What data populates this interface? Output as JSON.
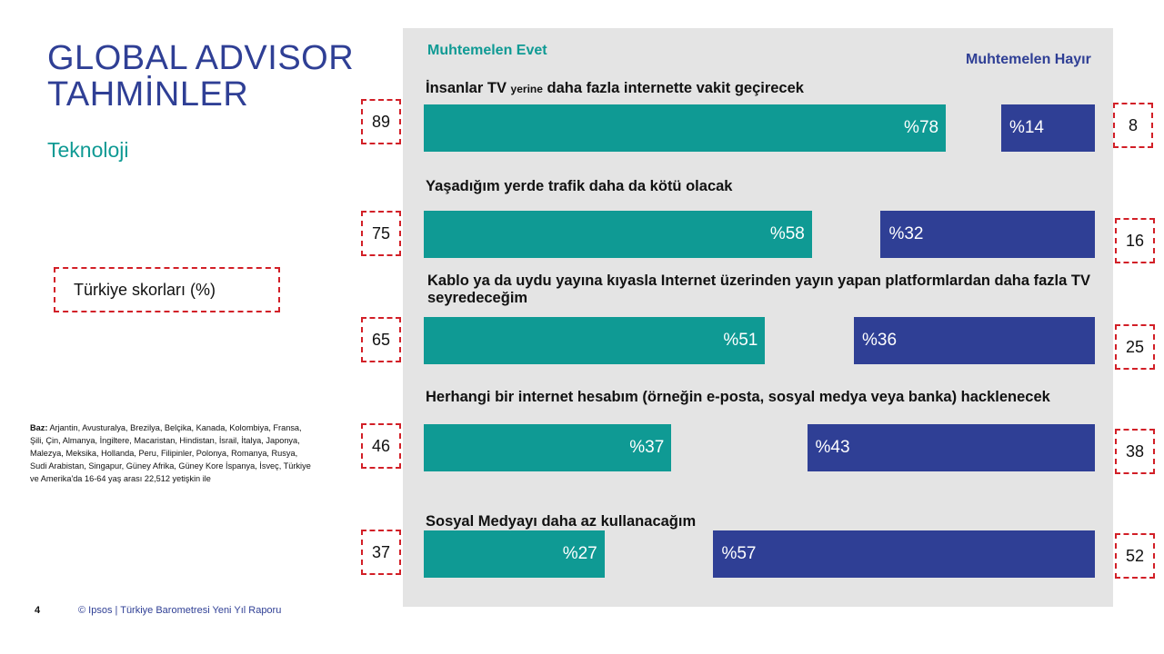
{
  "slide": {
    "title": "GLOBAL ADVISOR\nTAHMİNLER",
    "subtitle": "Teknoloji",
    "turkey_scores_label": "Türkiye skorları (%)",
    "base_label": "Baz:",
    "base_text": "Arjantin, Avusturalya, Brezilya, Belçika, Kanada, Kolombiya, Fransa, Şili, Çin, Almanya, İngiltere, Macaristan, Hindistan, İsrail, İtalya, Japonya, Malezya, Meksika, Hollanda, Peru, Filipinler, Polonya, Romanya, Rusya, Sudi Arabistan, Singapur, Güney Afrika, Güney Kore İspanya, İsveç, Türkiye ve Amerika'da 16-64 yaş arası 22,512 yetişkin ile",
    "page_number": "4",
    "footer": "© Ipsos | Türkiye Barometresi Yeni Yıl Raporu"
  },
  "colors": {
    "yes": "#0f9a94",
    "no": "#2f3f95",
    "title": "#2f3f95",
    "panel": "#e4e4e4",
    "highlight": "#d21f27"
  },
  "chart_data": {
    "type": "bar",
    "orientation": "horizontal",
    "series": [
      {
        "name": "Muhtemelen Evet",
        "values": [
          78,
          58,
          51,
          37,
          27
        ]
      },
      {
        "name": "Muhtemelen Hayır",
        "values": [
          14,
          32,
          36,
          43,
          57
        ]
      }
    ],
    "categories": [
      "İnsanlar TV yerine daha fazla internette vakit geçirecek",
      "Yaşadığım yerde trafik daha da kötü olacak",
      "Kablo ya da uydu yayına kıyasla Internet üzerinden yayın yapan platformlardan daha fazla TV seyredeceğim",
      "Herhangi bir internet hesabım (örneğin e-posta, sosyal medya veya banka) hacklenecek",
      "Sosyal Medyayı daha az kullanacağım"
    ],
    "category_parts": [
      {
        "a": "İnsanlar TV",
        "b": "yerine",
        "c": "daha fazla internette vakit geçirecek"
      }
    ],
    "yes_labels": [
      "%78",
      "%58",
      "%51",
      "%37",
      "%27"
    ],
    "no_labels": [
      "%14",
      "%32",
      "%36",
      "%43",
      "%57"
    ],
    "turkey_yes_scores": [
      "89",
      "75",
      "65",
      "46",
      "37"
    ],
    "turkey_no_scores": [
      "8",
      "16",
      "25",
      "38",
      "52"
    ],
    "legend": [
      "Muhtemelen Evet",
      "Muhtemelen Hayır"
    ],
    "xlim": [
      0,
      100
    ]
  }
}
